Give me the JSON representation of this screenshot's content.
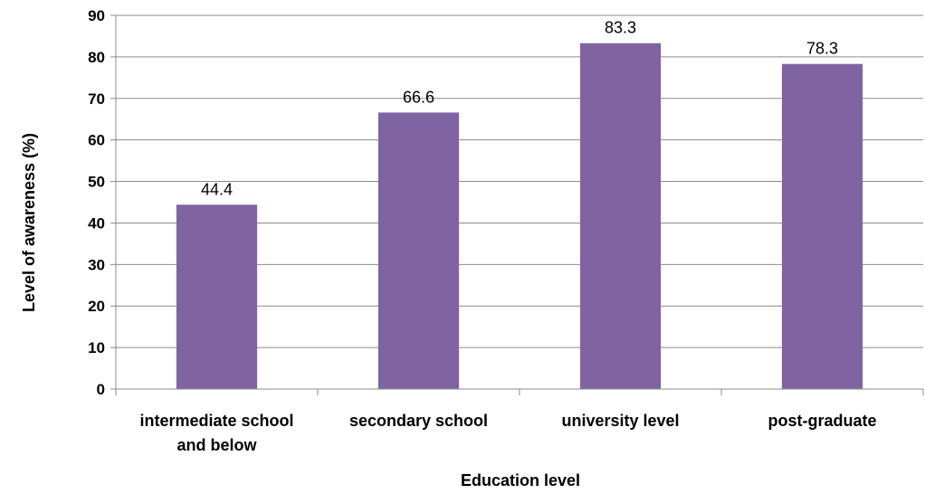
{
  "chart_data": {
    "type": "bar",
    "categories": [
      [
        "intermediate school",
        "and below"
      ],
      [
        "secondary school"
      ],
      [
        "university level"
      ],
      [
        "post-graduate"
      ]
    ],
    "values": [
      44.4,
      66.6,
      83.3,
      78.3
    ],
    "value_labels": [
      "44.4",
      "66.6",
      "83.3",
      "78.3"
    ],
    "xlabel": "Education level",
    "ylabel": "Level of awareness (%)",
    "ylim": [
      0,
      90
    ],
    "yticks": [
      0,
      10,
      20,
      30,
      40,
      50,
      60,
      70,
      80,
      90
    ],
    "ytick_labels": [
      "0",
      "10",
      "20",
      "30",
      "40",
      "50",
      "60",
      "70",
      "80",
      "90"
    ],
    "grid": true,
    "bar_color": "#8064a2"
  }
}
